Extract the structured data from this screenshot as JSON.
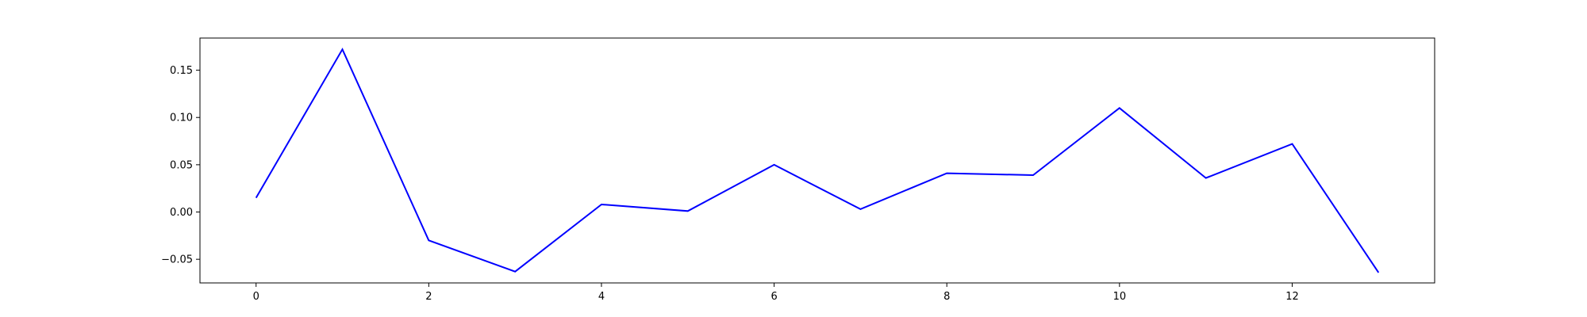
{
  "chart_data": {
    "type": "line",
    "title": "",
    "xlabel": "",
    "ylabel": "",
    "xlim": [
      -0.65,
      13.65
    ],
    "ylim": [
      -0.075,
      0.184
    ],
    "x_ticks": [
      0,
      2,
      4,
      6,
      8,
      10,
      12
    ],
    "x_tick_labels": [
      "0",
      "2",
      "4",
      "6",
      "8",
      "10",
      "12"
    ],
    "y_ticks": [
      -0.05,
      0.0,
      0.05,
      0.1,
      0.15
    ],
    "y_tick_labels": [
      "−0.05",
      "0.00",
      "0.05",
      "0.10",
      "0.15"
    ],
    "grid": false,
    "legend": false,
    "series": [
      {
        "color": "#0000ff",
        "x": [
          0,
          1,
          2,
          3,
          4,
          5,
          6,
          7,
          8,
          9,
          10,
          11,
          12,
          13
        ],
        "y": [
          0.015,
          0.172,
          -0.03,
          -0.063,
          0.008,
          0.001,
          0.05,
          0.003,
          0.041,
          0.039,
          0.11,
          0.036,
          0.072,
          -0.064
        ]
      }
    ]
  }
}
